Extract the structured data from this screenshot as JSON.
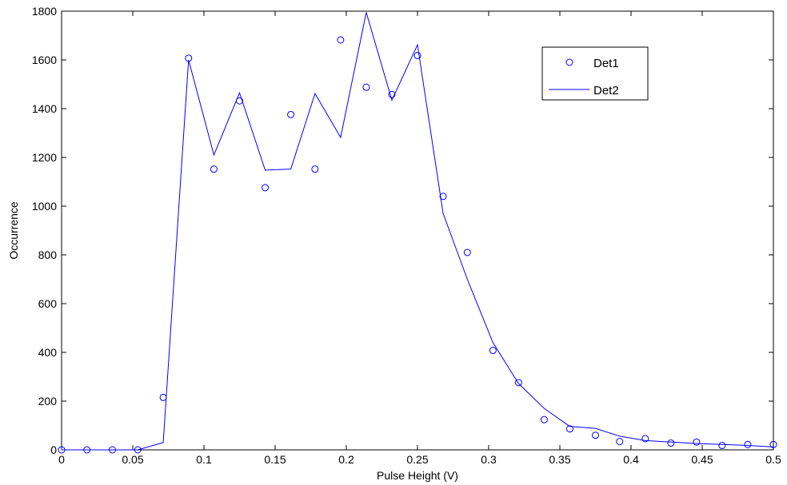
{
  "chart_data": {
    "type": "scatter",
    "xlabel": "Pulse Height (V)",
    "ylabel": "Occurrence",
    "xlim": [
      0,
      0.5
    ],
    "ylim": [
      0,
      1800
    ],
    "xticks": [
      0,
      0.05,
      0.1,
      0.15,
      0.2,
      0.25,
      0.3,
      0.35,
      0.4,
      0.45,
      0.5
    ],
    "xtick_labels": [
      "0",
      "0.05",
      "0.1",
      "0.15",
      "0.2",
      "0.25",
      "0.3",
      "0.35",
      "0.4",
      "0.45",
      "0.5"
    ],
    "yticks": [
      0,
      200,
      400,
      600,
      800,
      1000,
      1200,
      1400,
      1600,
      1800
    ],
    "ytick_labels": [
      "0",
      "200",
      "400",
      "600",
      "800",
      "1000",
      "1200",
      "1400",
      "1600",
      "1800"
    ],
    "grid": false,
    "legend_position": "top-right",
    "series": [
      {
        "name": "Det1",
        "style": "markers",
        "marker": "circle",
        "color": "#0000ff",
        "x": [
          0,
          0.0178,
          0.0357,
          0.0535,
          0.0714,
          0.0892,
          0.107,
          0.125,
          0.143,
          0.161,
          0.178,
          0.196,
          0.214,
          0.232,
          0.25,
          0.268,
          0.285,
          0.303,
          0.321,
          0.339,
          0.357,
          0.375,
          0.392,
          0.41,
          0.428,
          0.446,
          0.464,
          0.482,
          0.5
        ],
        "y": [
          0,
          0,
          0,
          0,
          215,
          1607,
          1152,
          1432,
          1076,
          1376,
          1152,
          1682,
          1488,
          1458,
          1618,
          1040,
          810,
          408,
          276,
          124,
          86,
          60,
          34,
          46,
          28,
          32,
          18,
          22,
          22
        ]
      },
      {
        "name": "Det2",
        "style": "line",
        "color": "#0000ff",
        "x": [
          0,
          0.0178,
          0.0357,
          0.0535,
          0.0714,
          0.0892,
          0.107,
          0.125,
          0.143,
          0.161,
          0.178,
          0.196,
          0.214,
          0.232,
          0.25,
          0.268,
          0.285,
          0.303,
          0.321,
          0.339,
          0.357,
          0.375,
          0.392,
          0.41,
          0.428,
          0.446,
          0.464,
          0.482,
          0.5
        ],
        "y": [
          0,
          0,
          0,
          0,
          30,
          1600,
          1210,
          1465,
          1148,
          1152,
          1462,
          1282,
          1795,
          1435,
          1662,
          970,
          700,
          440,
          272,
          170,
          96,
          88,
          56,
          38,
          32,
          26,
          22,
          18,
          12
        ]
      }
    ]
  }
}
